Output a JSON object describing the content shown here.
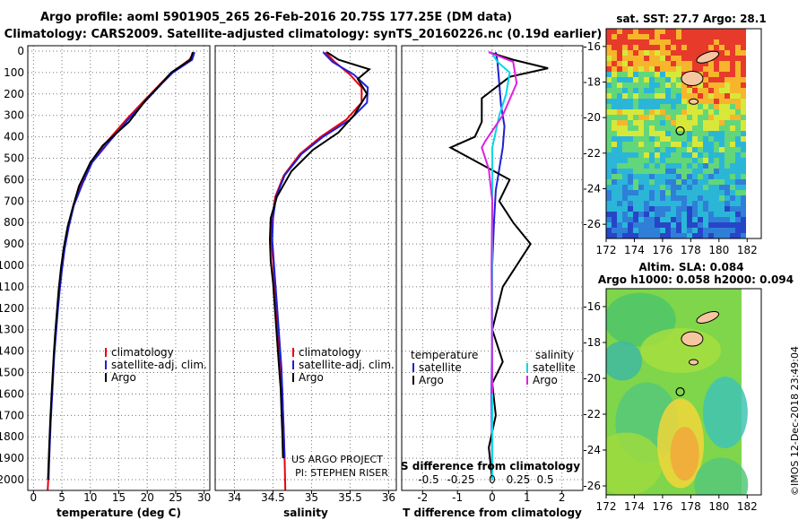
{
  "header": {
    "line1": "Argo profile: aoml 5901905_265 26-Feb-2016 20.75S 177.25E (DM data)",
    "line2": "Climatology: CARS2009. Satellite-adjusted climatology: synTS_20160226.nc (0.19d earlier)"
  },
  "credit": {
    "project": "US ARGO PROJECT",
    "pi": "PI: STEPHEN RISER",
    "imos": "©IMOS 12-Dec-2018 23:49:04"
  },
  "colors": {
    "climatology": "#e8000b",
    "satellite": "#1f1fd6",
    "argo": "#000000",
    "sal_satellite": "#00d8e8",
    "sal_argo": "#e020e0"
  },
  "chart_data": [
    {
      "type": "line",
      "name": "temperature-panel",
      "xlabel": "temperature (deg C)",
      "ylabel": "",
      "xlim": [
        -1,
        31
      ],
      "ylim": [
        2050,
        0
      ],
      "xticks": [
        0,
        5,
        10,
        15,
        20,
        25,
        30
      ],
      "yticks": [
        0,
        100,
        200,
        300,
        400,
        500,
        600,
        700,
        800,
        900,
        1000,
        1100,
        1200,
        1300,
        1400,
        1500,
        1600,
        1700,
        1800,
        1900,
        2000
      ],
      "grid": true,
      "legend": {
        "position": "lower-right",
        "entries": [
          "climatology",
          "satellite-adj. clim.",
          "Argo"
        ]
      },
      "series": [
        {
          "name": "climatology",
          "color_key": "climatology",
          "x": [
            28.2,
            27.4,
            24.3,
            22.4,
            19.5,
            16.3,
            13.0,
            10.0,
            8.3,
            7.0,
            6.1,
            5.4,
            4.9,
            4.5,
            4.2,
            3.9,
            3.6,
            3.4,
            3.2,
            3.0,
            2.85,
            2.7,
            2.6,
            2.5
          ],
          "y": [
            5,
            40,
            100,
            150,
            230,
            320,
            420,
            520,
            620,
            720,
            820,
            920,
            1020,
            1120,
            1220,
            1320,
            1420,
            1520,
            1620,
            1720,
            1820,
            1920,
            2000,
            2050
          ]
        },
        {
          "name": "satellite-adj. clim.",
          "color_key": "satellite",
          "x": [
            28.3,
            27.9,
            24.5,
            22.6,
            19.8,
            16.6,
            13.4,
            10.3,
            8.6,
            7.1,
            6.2,
            5.5,
            5.0,
            4.6,
            4.25,
            3.95,
            3.65,
            3.45,
            3.25,
            3.05,
            2.9,
            2.75,
            2.65
          ],
          "y": [
            5,
            40,
            100,
            150,
            230,
            320,
            420,
            520,
            620,
            720,
            820,
            920,
            1020,
            1120,
            1220,
            1320,
            1420,
            1520,
            1620,
            1720,
            1820,
            1920,
            2000
          ]
        },
        {
          "name": "Argo",
          "color_key": "argo",
          "x": [
            28.0,
            27.6,
            24.2,
            22.5,
            19.7,
            16.8,
            12.2,
            10.0,
            8.0,
            7.0,
            6.0,
            5.3,
            4.8,
            4.4,
            4.1,
            3.8,
            3.55,
            3.35,
            3.15,
            2.95,
            2.8,
            2.65,
            2.55
          ],
          "y": [
            5,
            40,
            100,
            150,
            230,
            330,
            440,
            520,
            630,
            720,
            820,
            920,
            1020,
            1120,
            1220,
            1320,
            1420,
            1520,
            1620,
            1720,
            1820,
            1920,
            2000
          ]
        }
      ]
    },
    {
      "type": "line",
      "name": "salinity-panel",
      "xlabel": "salinity",
      "ylabel": "",
      "xlim": [
        33.75,
        36.1
      ],
      "ylim": [
        2050,
        0
      ],
      "xticks": [
        34,
        34.5,
        35,
        35.5,
        36
      ],
      "grid": true,
      "legend": {
        "position": "lower-right",
        "entries": [
          "climatology",
          "satellite-adj. clim.",
          "Argo"
        ]
      },
      "series": [
        {
          "name": "climatology",
          "color_key": "climatology",
          "x": [
            35.18,
            35.3,
            35.5,
            35.65,
            35.65,
            35.45,
            35.12,
            34.85,
            34.64,
            34.53,
            34.49,
            34.48,
            34.5,
            34.52,
            34.54,
            34.56,
            34.58,
            34.6,
            34.62,
            34.63,
            34.64,
            34.65,
            34.66
          ],
          "y": [
            5,
            50,
            110,
            170,
            240,
            320,
            400,
            480,
            580,
            680,
            780,
            880,
            980,
            1080,
            1180,
            1280,
            1380,
            1480,
            1580,
            1680,
            1780,
            1900,
            2050
          ]
        },
        {
          "name": "satellite-adj. clim.",
          "color_key": "satellite",
          "x": [
            35.15,
            35.27,
            35.55,
            35.73,
            35.72,
            35.5,
            35.15,
            34.87,
            34.65,
            34.54,
            34.5,
            34.49,
            34.51,
            34.53,
            34.55,
            34.57,
            34.59,
            34.61,
            34.62,
            34.63,
            34.64,
            34.65
          ],
          "y": [
            5,
            50,
            110,
            170,
            240,
            320,
            400,
            480,
            580,
            680,
            780,
            880,
            980,
            1080,
            1180,
            1280,
            1380,
            1480,
            1580,
            1680,
            1780,
            1900
          ]
        },
        {
          "name": "Argo",
          "color_key": "argo",
          "x": [
            35.2,
            35.35,
            35.75,
            35.6,
            35.72,
            35.55,
            35.35,
            35.02,
            34.74,
            34.55,
            34.47,
            34.46,
            34.47,
            34.5,
            34.52,
            34.54,
            34.56,
            34.58,
            34.6,
            34.61,
            34.62,
            34.63
          ],
          "y": [
            5,
            40,
            85,
            130,
            200,
            300,
            380,
            460,
            560,
            680,
            780,
            880,
            980,
            1080,
            1180,
            1280,
            1380,
            1480,
            1580,
            1680,
            1780,
            1900
          ]
        }
      ]
    },
    {
      "type": "line",
      "name": "difference-panel",
      "xlabel": "T difference from climatology",
      "xlabel2": "S difference from climatology",
      "ylabel": "",
      "xlim": [
        -2.6,
        2.6
      ],
      "ylim": [
        2050,
        0
      ],
      "xticks": [
        -2,
        -1,
        0,
        1,
        2
      ],
      "xticks2": [
        "-0.5",
        "-0.25",
        "0",
        "0.25",
        "0.5"
      ],
      "grid": true,
      "legend_temperature": {
        "position": "lower-left",
        "title": "temperature",
        "entries": [
          "satellite",
          "Argo"
        ]
      },
      "legend_salinity": {
        "position": "lower-right",
        "title": "salinity",
        "entries": [
          "satellite",
          "Argo"
        ]
      },
      "series": [
        {
          "name": "temperature satellite",
          "color_key": "satellite",
          "x": [
            0.1,
            0.15,
            0.2,
            0.25,
            0.35,
            0.3,
            0.2,
            0.1,
            0.05,
            0.0,
            0.0,
            -0.02,
            0.0
          ],
          "y": [
            5,
            50,
            150,
            250,
            350,
            450,
            550,
            650,
            800,
            1000,
            1300,
            1600,
            2000
          ]
        },
        {
          "name": "temperature Argo",
          "color_key": "argo",
          "x": [
            -0.1,
            0.6,
            1.6,
            0.5,
            -0.3,
            -0.3,
            -0.5,
            -1.2,
            0.5,
            0.2,
            0.6,
            1.1,
            0.3,
            0.0,
            0.3,
            0.0,
            0.1,
            -0.1,
            0.0
          ],
          "y": [
            5,
            40,
            80,
            120,
            220,
            330,
            400,
            450,
            600,
            700,
            800,
            900,
            1100,
            1300,
            1450,
            1550,
            1700,
            1850,
            2000
          ]
        },
        {
          "name": "salinity satellite",
          "color_key": "sal_satellite",
          "x": [
            -0.03,
            0.15,
            0.5,
            0.4,
            0.2,
            0.0,
            0.0,
            0.0,
            0.0,
            0.0
          ],
          "y": [
            5,
            50,
            100,
            200,
            300,
            450,
            700,
            1100,
            1500,
            2000
          ]
        },
        {
          "name": "salinity Argo",
          "color_key": "sal_argo",
          "x": [
            -0.1,
            0.6,
            0.7,
            0.3,
            -0.2,
            -0.3,
            -0.1,
            0.0,
            -0.02,
            0.0
          ],
          "y": [
            5,
            50,
            150,
            300,
            420,
            450,
            550,
            700,
            1000,
            1600
          ]
        }
      ]
    },
    {
      "type": "heatmap",
      "name": "sst-map",
      "title": "sat. SST: 27.7 Argo: 28.1",
      "xlim": [
        172,
        183
      ],
      "ylim": [
        -26.8,
        -15
      ],
      "xticks": [
        172,
        174,
        176,
        178,
        180,
        182
      ],
      "yticks": [
        -16,
        -18,
        -20,
        -22,
        -24,
        -26
      ],
      "float_position": {
        "lon": 177.25,
        "lat": -20.75
      }
    },
    {
      "type": "heatmap",
      "name": "sla-map",
      "title": "Altim. SLA: 0.084",
      "subtitle": "Argo h1000: 0.058 h2000: 0.094",
      "xlim": [
        172,
        183
      ],
      "ylim": [
        -26.5,
        -15
      ],
      "xticks": [
        172,
        174,
        176,
        178,
        180,
        182
      ],
      "yticks": [
        -16,
        -18,
        -20,
        -22,
        -24,
        -26
      ],
      "float_position": {
        "lon": 177.25,
        "lat": -20.75
      }
    }
  ]
}
